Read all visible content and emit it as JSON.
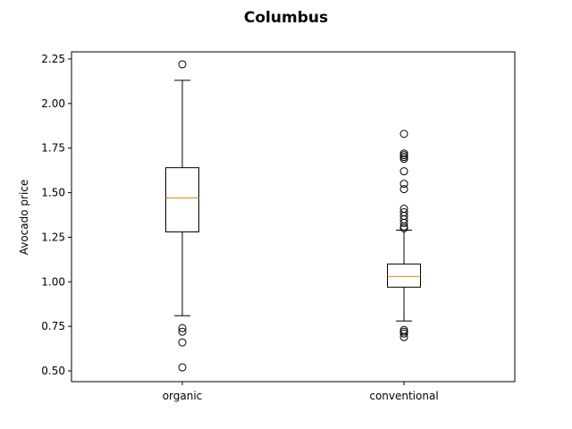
{
  "chart_data": {
    "type": "box",
    "title": "Columbus",
    "xlabel": "",
    "ylabel": "Avocado price",
    "ylim": [
      0.44,
      2.29
    ],
    "yticks": [
      "0.50",
      "0.75",
      "1.00",
      "1.25",
      "1.50",
      "1.75",
      "2.00",
      "2.25"
    ],
    "grid": false,
    "categories": [
      "organic",
      "conventional"
    ],
    "boxes": [
      {
        "category": "organic",
        "whisker_low": 0.81,
        "q1": 1.28,
        "median": 1.47,
        "q3": 1.64,
        "whisker_high": 2.13,
        "outliers": [
          2.22,
          0.74,
          0.72,
          0.66,
          0.52
        ]
      },
      {
        "category": "conventional",
        "whisker_low": 0.78,
        "q1": 0.97,
        "median": 1.03,
        "q3": 1.1,
        "whisker_high": 1.29,
        "outliers": [
          1.83,
          1.72,
          1.71,
          1.7,
          1.69,
          1.62,
          1.55,
          1.52,
          1.41,
          1.39,
          1.37,
          1.35,
          1.33,
          1.31,
          1.3,
          0.73,
          0.72,
          0.71,
          0.69
        ]
      }
    ],
    "colors": {
      "box": "#000000",
      "median": "#ff7f0e",
      "background": "#ffffff"
    }
  }
}
